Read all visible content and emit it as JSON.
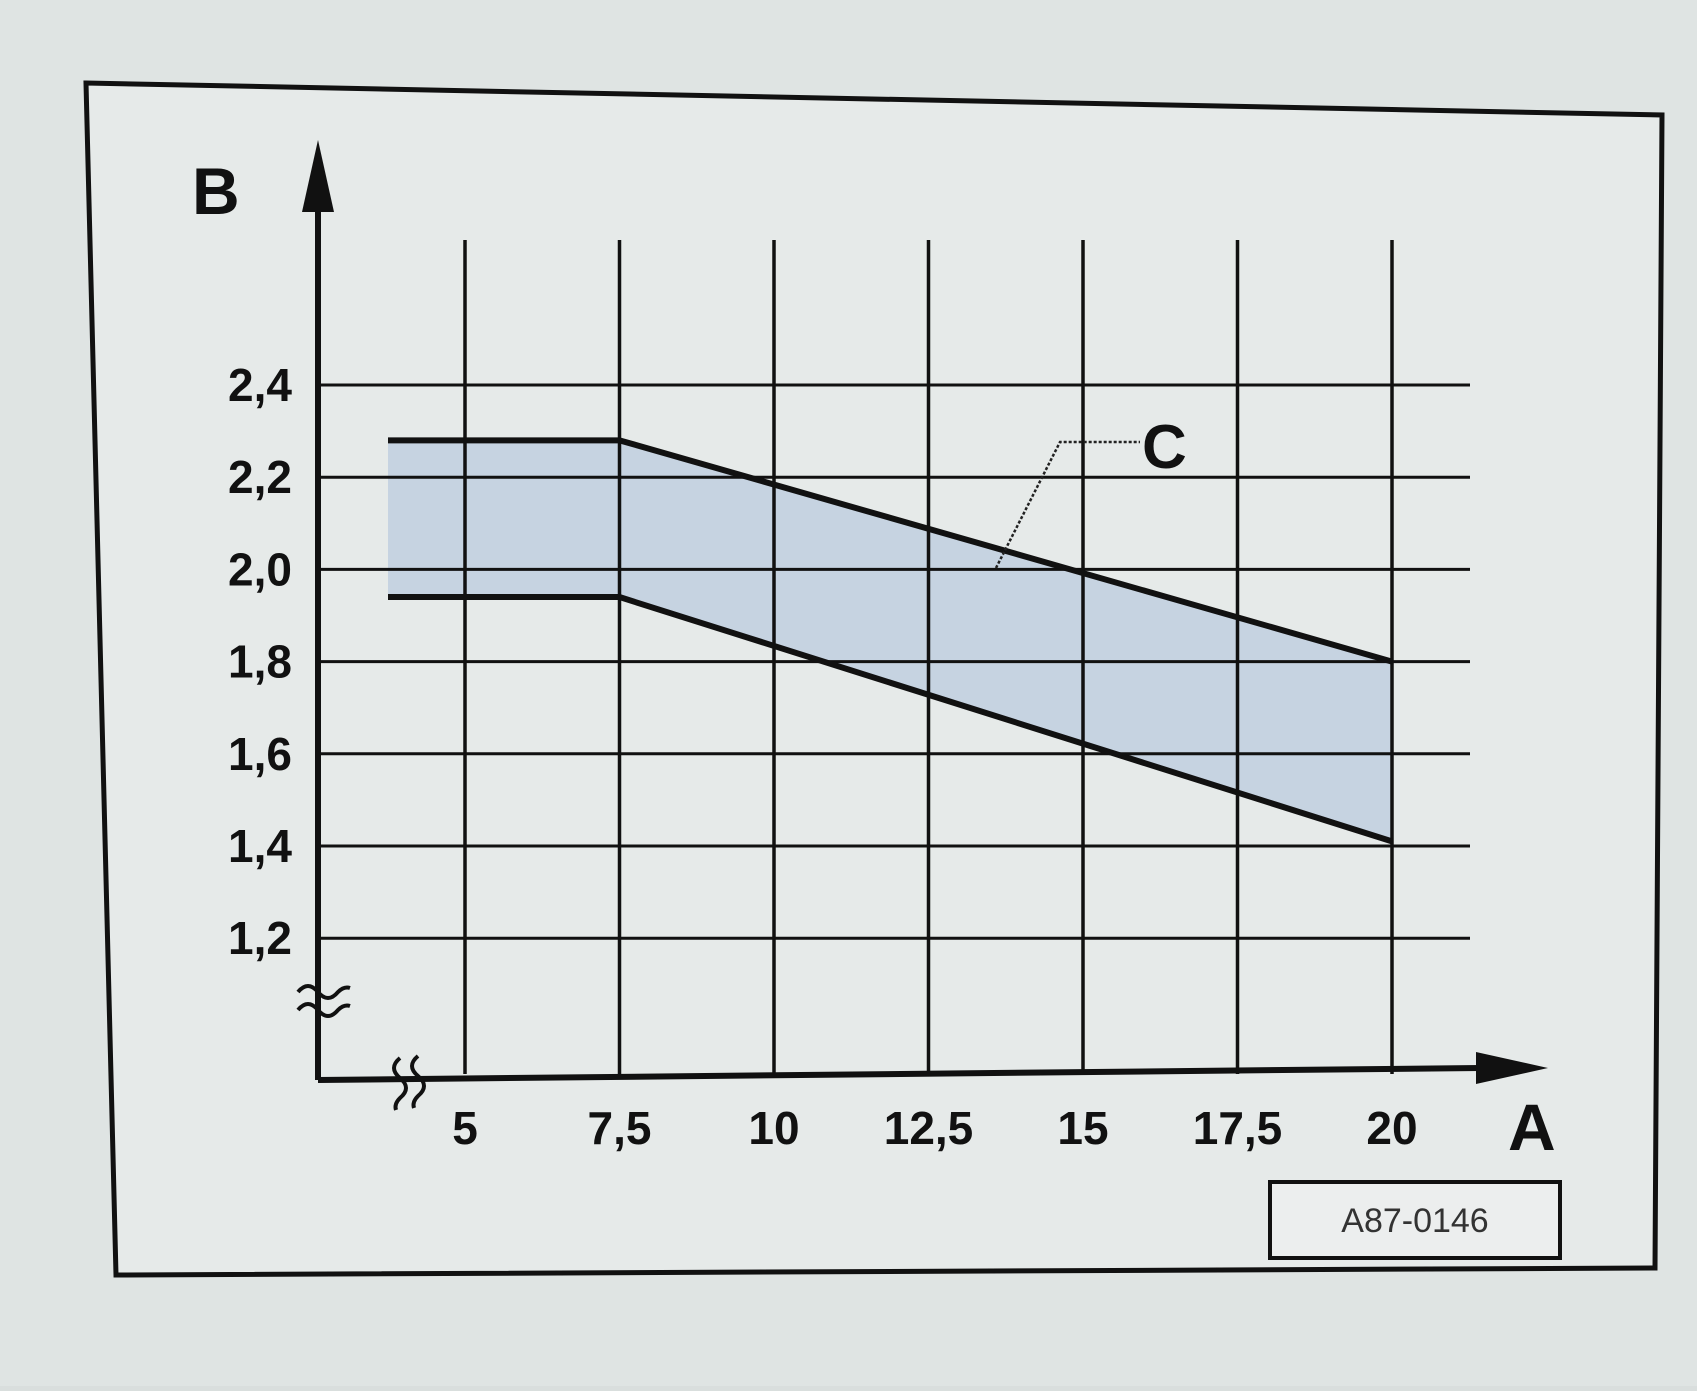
{
  "chart_data": {
    "type": "area",
    "title": "",
    "xlabel": "A",
    "ylabel": "B",
    "xlim": [
      4,
      21.5
    ],
    "ylim": [
      1.2,
      2.4
    ],
    "x_ticks": [
      "5",
      "7,5",
      "10",
      "12,5",
      "15",
      "17,5",
      "20"
    ],
    "x_tick_values": [
      5,
      7.5,
      10,
      12.5,
      15,
      17.5,
      20
    ],
    "y_ticks": [
      "2,4",
      "2,2",
      "2,0",
      "1,8",
      "1,6",
      "1,4",
      "1,2"
    ],
    "y_tick_values": [
      2.4,
      2.2,
      2.0,
      1.8,
      1.6,
      1.4,
      1.2
    ],
    "grid": true,
    "band": {
      "label": "C",
      "upper": {
        "x": [
          4.0,
          7.5,
          20.0
        ],
        "y": [
          2.28,
          2.28,
          1.8
        ]
      },
      "lower": {
        "x": [
          4.0,
          7.5,
          20.0
        ],
        "y": [
          1.94,
          1.94,
          1.41
        ]
      },
      "fill_color": "#c6d3e1",
      "line_color": "#111111"
    },
    "axis_breaks": [
      "x",
      "y"
    ],
    "reference_code": "A87-0146"
  }
}
